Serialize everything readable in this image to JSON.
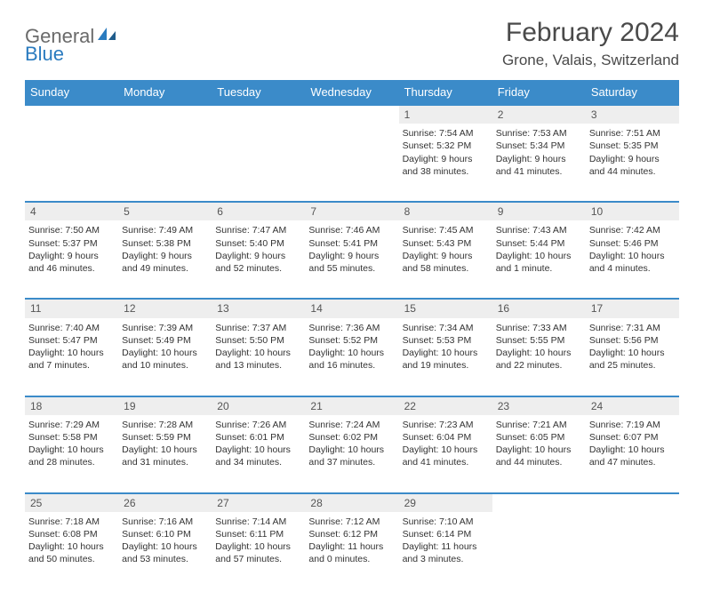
{
  "logo": {
    "part1": "General",
    "part2": "Blue"
  },
  "title": "February 2024",
  "location": "Grone, Valais, Switzerland",
  "colors": {
    "header_bg": "#3b8bc9",
    "header_text": "#ffffff",
    "daynum_bg": "#eeeeee",
    "border": "#3b8bc9",
    "text": "#333333",
    "logo_gray": "#6a6a6a",
    "logo_blue": "#2a7bbf"
  },
  "typography": {
    "title_fontsize": 30,
    "location_fontsize": 17,
    "header_fontsize": 13,
    "cell_fontsize": 10.5
  },
  "day_headers": [
    "Sunday",
    "Monday",
    "Tuesday",
    "Wednesday",
    "Thursday",
    "Friday",
    "Saturday"
  ],
  "weeks": [
    [
      null,
      null,
      null,
      null,
      {
        "n": "1",
        "sr": "Sunrise: 7:54 AM",
        "ss": "Sunset: 5:32 PM",
        "d1": "Daylight: 9 hours",
        "d2": "and 38 minutes."
      },
      {
        "n": "2",
        "sr": "Sunrise: 7:53 AM",
        "ss": "Sunset: 5:34 PM",
        "d1": "Daylight: 9 hours",
        "d2": "and 41 minutes."
      },
      {
        "n": "3",
        "sr": "Sunrise: 7:51 AM",
        "ss": "Sunset: 5:35 PM",
        "d1": "Daylight: 9 hours",
        "d2": "and 44 minutes."
      }
    ],
    [
      {
        "n": "4",
        "sr": "Sunrise: 7:50 AM",
        "ss": "Sunset: 5:37 PM",
        "d1": "Daylight: 9 hours",
        "d2": "and 46 minutes."
      },
      {
        "n": "5",
        "sr": "Sunrise: 7:49 AM",
        "ss": "Sunset: 5:38 PM",
        "d1": "Daylight: 9 hours",
        "d2": "and 49 minutes."
      },
      {
        "n": "6",
        "sr": "Sunrise: 7:47 AM",
        "ss": "Sunset: 5:40 PM",
        "d1": "Daylight: 9 hours",
        "d2": "and 52 minutes."
      },
      {
        "n": "7",
        "sr": "Sunrise: 7:46 AM",
        "ss": "Sunset: 5:41 PM",
        "d1": "Daylight: 9 hours",
        "d2": "and 55 minutes."
      },
      {
        "n": "8",
        "sr": "Sunrise: 7:45 AM",
        "ss": "Sunset: 5:43 PM",
        "d1": "Daylight: 9 hours",
        "d2": "and 58 minutes."
      },
      {
        "n": "9",
        "sr": "Sunrise: 7:43 AM",
        "ss": "Sunset: 5:44 PM",
        "d1": "Daylight: 10 hours",
        "d2": "and 1 minute."
      },
      {
        "n": "10",
        "sr": "Sunrise: 7:42 AM",
        "ss": "Sunset: 5:46 PM",
        "d1": "Daylight: 10 hours",
        "d2": "and 4 minutes."
      }
    ],
    [
      {
        "n": "11",
        "sr": "Sunrise: 7:40 AM",
        "ss": "Sunset: 5:47 PM",
        "d1": "Daylight: 10 hours",
        "d2": "and 7 minutes."
      },
      {
        "n": "12",
        "sr": "Sunrise: 7:39 AM",
        "ss": "Sunset: 5:49 PM",
        "d1": "Daylight: 10 hours",
        "d2": "and 10 minutes."
      },
      {
        "n": "13",
        "sr": "Sunrise: 7:37 AM",
        "ss": "Sunset: 5:50 PM",
        "d1": "Daylight: 10 hours",
        "d2": "and 13 minutes."
      },
      {
        "n": "14",
        "sr": "Sunrise: 7:36 AM",
        "ss": "Sunset: 5:52 PM",
        "d1": "Daylight: 10 hours",
        "d2": "and 16 minutes."
      },
      {
        "n": "15",
        "sr": "Sunrise: 7:34 AM",
        "ss": "Sunset: 5:53 PM",
        "d1": "Daylight: 10 hours",
        "d2": "and 19 minutes."
      },
      {
        "n": "16",
        "sr": "Sunrise: 7:33 AM",
        "ss": "Sunset: 5:55 PM",
        "d1": "Daylight: 10 hours",
        "d2": "and 22 minutes."
      },
      {
        "n": "17",
        "sr": "Sunrise: 7:31 AM",
        "ss": "Sunset: 5:56 PM",
        "d1": "Daylight: 10 hours",
        "d2": "and 25 minutes."
      }
    ],
    [
      {
        "n": "18",
        "sr": "Sunrise: 7:29 AM",
        "ss": "Sunset: 5:58 PM",
        "d1": "Daylight: 10 hours",
        "d2": "and 28 minutes."
      },
      {
        "n": "19",
        "sr": "Sunrise: 7:28 AM",
        "ss": "Sunset: 5:59 PM",
        "d1": "Daylight: 10 hours",
        "d2": "and 31 minutes."
      },
      {
        "n": "20",
        "sr": "Sunrise: 7:26 AM",
        "ss": "Sunset: 6:01 PM",
        "d1": "Daylight: 10 hours",
        "d2": "and 34 minutes."
      },
      {
        "n": "21",
        "sr": "Sunrise: 7:24 AM",
        "ss": "Sunset: 6:02 PM",
        "d1": "Daylight: 10 hours",
        "d2": "and 37 minutes."
      },
      {
        "n": "22",
        "sr": "Sunrise: 7:23 AM",
        "ss": "Sunset: 6:04 PM",
        "d1": "Daylight: 10 hours",
        "d2": "and 41 minutes."
      },
      {
        "n": "23",
        "sr": "Sunrise: 7:21 AM",
        "ss": "Sunset: 6:05 PM",
        "d1": "Daylight: 10 hours",
        "d2": "and 44 minutes."
      },
      {
        "n": "24",
        "sr": "Sunrise: 7:19 AM",
        "ss": "Sunset: 6:07 PM",
        "d1": "Daylight: 10 hours",
        "d2": "and 47 minutes."
      }
    ],
    [
      {
        "n": "25",
        "sr": "Sunrise: 7:18 AM",
        "ss": "Sunset: 6:08 PM",
        "d1": "Daylight: 10 hours",
        "d2": "and 50 minutes."
      },
      {
        "n": "26",
        "sr": "Sunrise: 7:16 AM",
        "ss": "Sunset: 6:10 PM",
        "d1": "Daylight: 10 hours",
        "d2": "and 53 minutes."
      },
      {
        "n": "27",
        "sr": "Sunrise: 7:14 AM",
        "ss": "Sunset: 6:11 PM",
        "d1": "Daylight: 10 hours",
        "d2": "and 57 minutes."
      },
      {
        "n": "28",
        "sr": "Sunrise: 7:12 AM",
        "ss": "Sunset: 6:12 PM",
        "d1": "Daylight: 11 hours",
        "d2": "and 0 minutes."
      },
      {
        "n": "29",
        "sr": "Sunrise: 7:10 AM",
        "ss": "Sunset: 6:14 PM",
        "d1": "Daylight: 11 hours",
        "d2": "and 3 minutes."
      },
      null,
      null
    ]
  ]
}
